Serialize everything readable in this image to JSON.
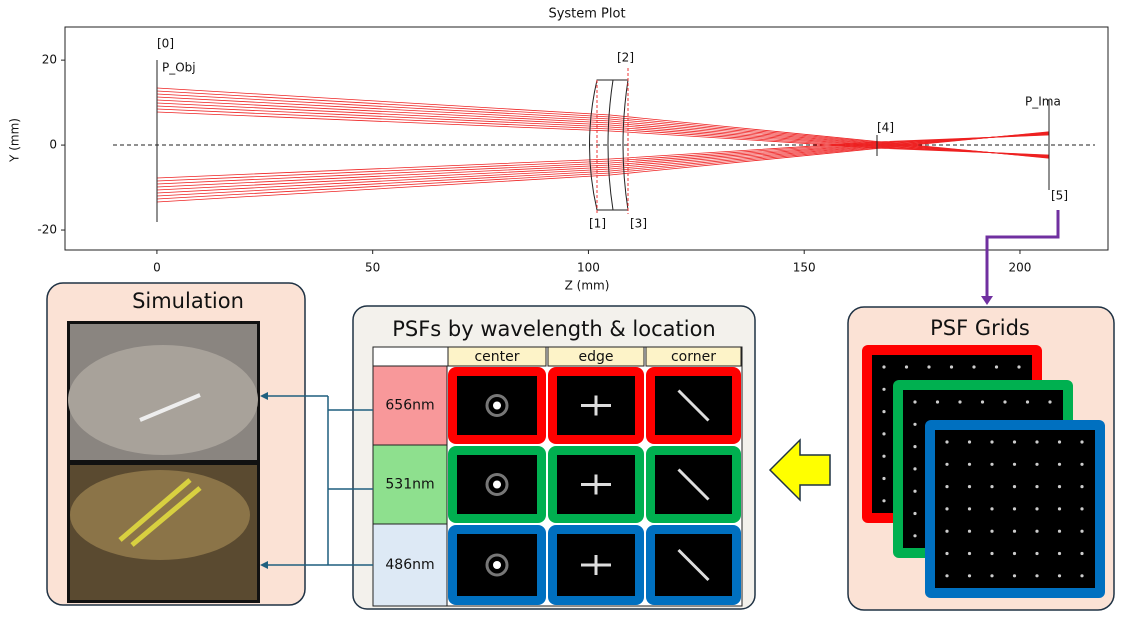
{
  "system_plot": {
    "title": "System Plot",
    "x_label": "Z (mm)",
    "y_label": "Y (mm)",
    "xlim": [
      -21.3,
      220.4
    ],
    "ylim": [
      -24.7,
      27.8
    ],
    "xticks": [
      0,
      50,
      100,
      150,
      200
    ],
    "yticks": [
      -20,
      0,
      20
    ],
    "surface_labels": [
      "[0]",
      "P_Obj",
      "[1]",
      "[2]",
      "[3]",
      "[4]",
      "[5]",
      "P_Ima"
    ]
  },
  "simulation": {
    "title": "Simulation"
  },
  "psf_table": {
    "title": "PSFs by wavelength & location",
    "columns": [
      "center",
      "edge",
      "corner"
    ],
    "rows": [
      "656nm",
      "531nm",
      "486nm"
    ]
  },
  "psf_grids": {
    "title": "PSF Grids"
  }
}
